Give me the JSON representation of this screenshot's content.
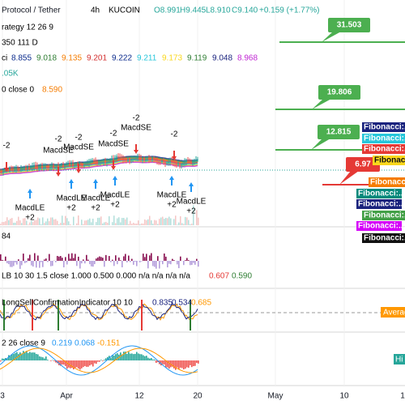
{
  "header": {
    "symbol": "Protocol / Tether",
    "interval": "4h",
    "exchange": "KUCOIN",
    "open": "O8.991",
    "high": "H9.445",
    "low": "L8.910",
    "close": "C9.140",
    "change": "+0.159 (+1.77%)"
  },
  "legend": {
    "strategy": "rategy 12 26 9",
    "line3": "350 111 D",
    "fib_label": "ci",
    "fib_values": [
      {
        "text": "8.855",
        "color": "#0b2b8c"
      },
      {
        "text": "9.018",
        "color": "#2e7d32"
      },
      {
        "text": "9.135",
        "color": "#f57c00"
      },
      {
        "text": "9.201",
        "color": "#d32f2f"
      },
      {
        "text": "9.222",
        "color": "#0b2b8c"
      },
      {
        "text": "9.211",
        "color": "#26c6da"
      },
      {
        "text": "9.173",
        "color": "#f9d71c"
      },
      {
        "text": "9.119",
        "color": "#2e7d32"
      },
      {
        "text": "9.048",
        "color": "#1a237e"
      },
      {
        "text": "8.968",
        "color": "#c026d3"
      }
    ],
    "volume": ".05K",
    "ma": "0 close 0",
    "ma_value": "8.590"
  },
  "targets": [
    {
      "text": "31.503",
      "color": "#4caf50"
    },
    {
      "text": "19.806",
      "color": "#4caf50"
    },
    {
      "text": "12.815",
      "color": "#4caf50"
    },
    {
      "text": "6.97",
      "color": "#e53935"
    }
  ],
  "fibonacci": [
    {
      "text": "Fibonacci:...",
      "color": "#1a237e"
    },
    {
      "text": "Fibonacci:...",
      "color": "#26c6da"
    },
    {
      "text": "Fibonacci:...",
      "color": "#e53935"
    },
    {
      "text": "Fibonacci:...",
      "color": "#f9d71c"
    },
    {
      "text": "Fibonacci:...",
      "color": "#f57c00"
    },
    {
      "text": "Fibonacci:...",
      "color": "#00897b"
    },
    {
      "text": "Fibonacci:...",
      "color": "#1a237e"
    },
    {
      "text": "Fibonacci:...",
      "color": "#43a047"
    },
    {
      "text": "Fibonacci:...",
      "color": "#d500f9"
    },
    {
      "text": "Fibonacci:...",
      "color": "#111111"
    }
  ],
  "signals": {
    "sell": [
      {
        "amount": "-2"
      },
      {
        "amount": "-2",
        "name": "MacdSE"
      },
      {
        "amount": "-2",
        "name": "MacdSE"
      },
      {
        "amount": "-2",
        "name": "MacdSE"
      },
      {
        "amount": "-2",
        "name": "MacdSE"
      },
      {
        "amount": "-2"
      }
    ],
    "buy": [
      {
        "name": "MacdLE",
        "amount": "+2"
      },
      {
        "name": "MacdLE",
        "amount": "+2"
      },
      {
        "name": "MacdLE",
        "amount": "+2"
      },
      {
        "name": "MacdLE",
        "amount": "+2"
      },
      {
        "name": "MacdLE",
        "amount": "+2"
      },
      {
        "name": "MacdLE",
        "amount": "+2"
      }
    ]
  },
  "panels": {
    "p1_top": "84",
    "p1_legend": "LB 10 30 1.5 close 1.000 0.500 0.000 n/a n/a n/a n/a",
    "p1_v1": "0.607",
    "p1_v2": "0.590",
    "p2_legend": "LongSellConfirmationIndicator 10 10",
    "p2_v1": "0.835",
    "p2_v2": "0.534",
    "p2_v3": "0.685",
    "p2_badge": "Average",
    "p3_legend": "2 26 close 9",
    "p3_v1": "0.219",
    "p3_v2": "0.068",
    "p3_v3": "-0.151",
    "p3_badge": "Hi"
  },
  "time_axis": [
    "3",
    "Apr",
    "12",
    "20",
    "May",
    "10",
    "1"
  ]
}
